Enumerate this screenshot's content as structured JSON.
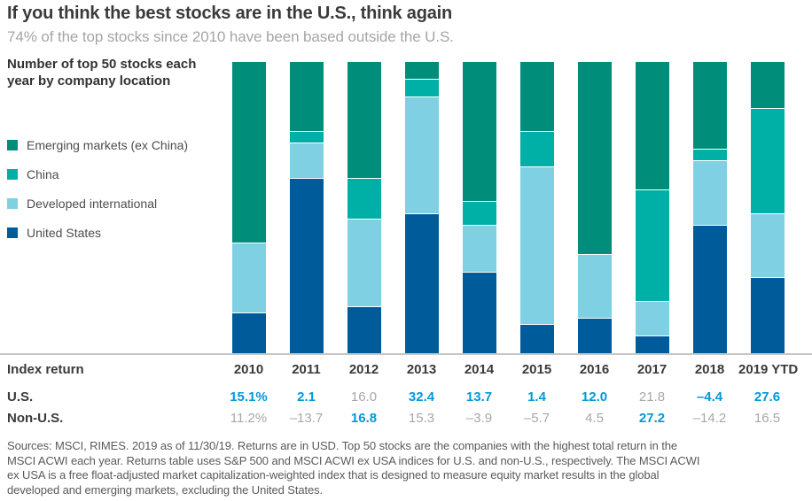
{
  "header": {
    "title": "If you think the best stocks are in the U.S., think again",
    "subtitle": "74% of the top stocks since 2010 have been based outside the U.S."
  },
  "chart": {
    "label": "Number of top 50 stocks each year by company location",
    "baseline_color": "#c6c6c6"
  },
  "legend": {
    "items": [
      {
        "label": "Emerging markets (ex China)",
        "color": "#008e7b"
      },
      {
        "label": "China",
        "color": "#00b0a7"
      },
      {
        "label": "Developed international",
        "color": "#7ed0e2"
      },
      {
        "label": "United States",
        "color": "#005b9b"
      }
    ]
  },
  "chart_data": {
    "type": "bar",
    "stacked": true,
    "title": "Number of top 50 stocks each year by company location",
    "categories": [
      "2010",
      "2011",
      "2012",
      "2013",
      "2014",
      "2015",
      "2016",
      "2017",
      "2018",
      "2019 YTD"
    ],
    "series": [
      {
        "name": "United States",
        "color": "#005b9b",
        "values": [
          7,
          30,
          8,
          24,
          14,
          5,
          6,
          3,
          22,
          13
        ]
      },
      {
        "name": "Developed international",
        "color": "#7ed0e2",
        "values": [
          12,
          6,
          15,
          20,
          8,
          27,
          11,
          6,
          11,
          11
        ]
      },
      {
        "name": "China",
        "color": "#00b0a7",
        "values": [
          0,
          2,
          7,
          3,
          4,
          6,
          0,
          19,
          2,
          18
        ]
      },
      {
        "name": "Emerging markets (ex China)",
        "color": "#008e7b",
        "values": [
          31,
          12,
          20,
          3,
          24,
          12,
          33,
          22,
          15,
          8
        ]
      }
    ],
    "ylim": [
      0,
      50
    ],
    "bar_total": 50,
    "grid": false,
    "legend_position": "left"
  },
  "table": {
    "header_label": "Index return",
    "rows": [
      {
        "label": "U.S.",
        "values": [
          "15.1%",
          "2.1",
          "16.0",
          "32.4",
          "13.7",
          "1.4",
          "12.0",
          "21.8",
          "–4.4",
          "27.6"
        ],
        "highlights": [
          true,
          true,
          false,
          true,
          true,
          true,
          true,
          false,
          true,
          true
        ]
      },
      {
        "label": "Non-U.S.",
        "values": [
          "11.2%",
          "–13.7",
          "16.8",
          "15.3",
          "–3.9",
          "–5.7",
          "4.5",
          "27.2",
          "–14.2",
          "16.5"
        ],
        "highlights": [
          false,
          false,
          true,
          false,
          false,
          false,
          false,
          true,
          false,
          false
        ]
      }
    ],
    "highlight_color": "#0099d8",
    "dim_color": "#a8a8a8"
  },
  "sources": {
    "lines": [
      "Sources: MSCI, RIMES. 2019 as of 11/30/19. Returns are in USD. Top 50 stocks are the companies with the highest total return in the",
      "MSCI ACWI each year. Returns table uses S&P 500 and MSCI ACWI ex USA indices for U.S. and non-U.S., respectively. The MSCI ACWI",
      "ex USA is a free float-adjusted market capitalization-weighted index that is designed to measure equity market results in the global",
      "developed and emerging markets, excluding the United States."
    ]
  }
}
